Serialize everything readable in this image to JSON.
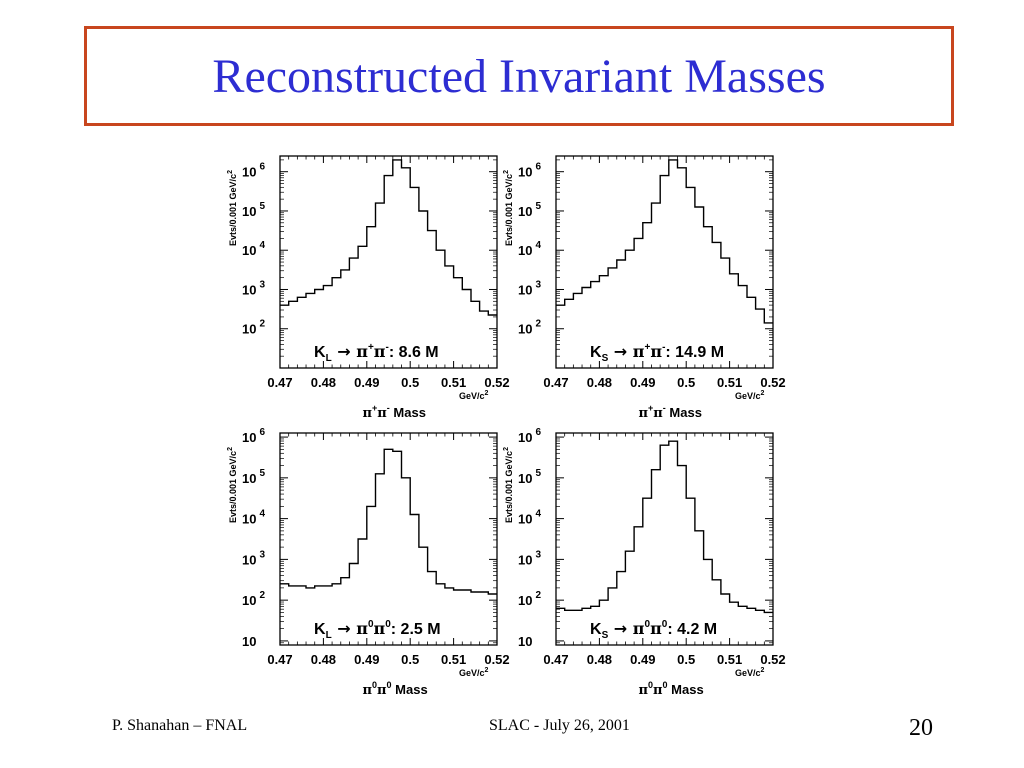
{
  "slide": {
    "title": "Reconstructed Invariant Masses",
    "footer_left": "P. Shanahan – FNAL",
    "footer_center": "SLAC  -  July 26, 2001",
    "page_number": "20"
  },
  "colors": {
    "title_text": "#2d2dd2",
    "title_border": "#c8461e",
    "histogram_line": "#000000"
  },
  "chart_data": [
    {
      "type": "histogram",
      "panel": "top-left",
      "legend": {
        "parent": "K",
        "parent_sub": "L",
        "d1": "π",
        "d1_sup": "+",
        "d2": "π",
        "d2_sup": "-",
        "count": ": 8.6 M"
      },
      "xlabel": {
        "s1": "π",
        "sup1": "+",
        "s2": "π",
        "sup2": "-",
        "rest": " Mass"
      },
      "ylabel": "Evts/0.001 GeV/c",
      "ylabel_sup": "2",
      "x_unit": "GeV/c",
      "x_unit_sup": "2",
      "xlim": [
        0.47,
        0.52
      ],
      "ylim_log10": [
        1.0,
        6.4
      ],
      "log_y": true,
      "x_ticks": [
        "0.47",
        "0.48",
        "0.49",
        "0.5",
        "0.51",
        "0.52"
      ],
      "y_ticks": [
        {
          "base": "10",
          "exp": "2"
        },
        {
          "base": "10",
          "exp": "3"
        },
        {
          "base": "10",
          "exp": "4"
        },
        {
          "base": "10",
          "exp": "5"
        },
        {
          "base": "10",
          "exp": "6"
        }
      ],
      "x_bin_edges": [
        0.47,
        0.472,
        0.474,
        0.476,
        0.478,
        0.48,
        0.482,
        0.484,
        0.486,
        0.488,
        0.49,
        0.492,
        0.494,
        0.496,
        0.498,
        0.5,
        0.502,
        0.504,
        0.506,
        0.508,
        0.51,
        0.512,
        0.514,
        0.516,
        0.518,
        0.52
      ],
      "log10_counts": [
        2.6,
        2.7,
        2.8,
        2.9,
        3.0,
        3.1,
        3.3,
        3.5,
        3.8,
        4.1,
        4.6,
        5.2,
        5.9,
        6.3,
        6.1,
        5.6,
        5.0,
        4.5,
        4.0,
        3.6,
        3.3,
        3.0,
        2.7,
        2.45,
        2.35
      ]
    },
    {
      "type": "histogram",
      "panel": "top-right",
      "legend": {
        "parent": "K",
        "parent_sub": "S",
        "d1": "π",
        "d1_sup": "+",
        "d2": "π",
        "d2_sup": "-",
        "count": ": 14.9 M"
      },
      "xlabel": {
        "s1": "π",
        "sup1": "+",
        "s2": "π",
        "sup2": "-",
        "rest": " Mass"
      },
      "ylabel": "Evts/0.001 GeV/c",
      "ylabel_sup": "2",
      "x_unit": "GeV/c",
      "x_unit_sup": "2",
      "xlim": [
        0.47,
        0.52
      ],
      "ylim_log10": [
        1.0,
        6.4
      ],
      "log_y": true,
      "x_ticks": [
        "0.47",
        "0.48",
        "0.49",
        "0.5",
        "0.51",
        "0.52"
      ],
      "y_ticks": [
        {
          "base": "10",
          "exp": "2"
        },
        {
          "base": "10",
          "exp": "3"
        },
        {
          "base": "10",
          "exp": "4"
        },
        {
          "base": "10",
          "exp": "5"
        },
        {
          "base": "10",
          "exp": "6"
        }
      ],
      "x_bin_edges": [
        0.47,
        0.472,
        0.474,
        0.476,
        0.478,
        0.48,
        0.482,
        0.484,
        0.486,
        0.488,
        0.49,
        0.492,
        0.494,
        0.496,
        0.498,
        0.5,
        0.502,
        0.504,
        0.506,
        0.508,
        0.51,
        0.512,
        0.514,
        0.516,
        0.518,
        0.52
      ],
      "log10_counts": [
        2.6,
        2.75,
        2.9,
        3.05,
        3.2,
        3.35,
        3.55,
        3.75,
        4.0,
        4.3,
        4.7,
        5.2,
        5.9,
        6.3,
        6.1,
        5.6,
        5.1,
        4.6,
        4.2,
        3.8,
        3.4,
        3.1,
        2.8,
        2.5,
        2.15
      ]
    },
    {
      "type": "histogram",
      "panel": "bottom-left",
      "legend": {
        "parent": "K",
        "parent_sub": "L",
        "d1": "π",
        "d1_sup": "0",
        "d2": "π",
        "d2_sup": "0",
        "count": ": 2.5 M"
      },
      "xlabel": {
        "s1": "π",
        "sup1": "0",
        "s2": "π",
        "sup2": "0",
        "rest": " Mass"
      },
      "ylabel": "Evts/0.001 GeV/c",
      "ylabel_sup": "2",
      "x_unit": "GeV/c",
      "x_unit_sup": "2",
      "xlim": [
        0.47,
        0.52
      ],
      "ylim_log10": [
        0.9,
        6.1
      ],
      "log_y": true,
      "x_ticks": [
        "0.47",
        "0.48",
        "0.49",
        "0.5",
        "0.51",
        "0.52"
      ],
      "y_ticks": [
        {
          "base": "10",
          "exp": ""
        },
        {
          "base": "10",
          "exp": "2"
        },
        {
          "base": "10",
          "exp": "3"
        },
        {
          "base": "10",
          "exp": "4"
        },
        {
          "base": "10",
          "exp": "5"
        },
        {
          "base": "10",
          "exp": "6"
        }
      ],
      "x_bin_edges": [
        0.47,
        0.472,
        0.474,
        0.476,
        0.478,
        0.48,
        0.482,
        0.484,
        0.486,
        0.488,
        0.49,
        0.492,
        0.494,
        0.496,
        0.498,
        0.5,
        0.502,
        0.504,
        0.506,
        0.508,
        0.51,
        0.512,
        0.514,
        0.516,
        0.518,
        0.52
      ],
      "log10_counts": [
        2.4,
        2.35,
        2.35,
        2.3,
        2.35,
        2.35,
        2.4,
        2.55,
        2.9,
        3.5,
        4.3,
        5.1,
        5.7,
        5.65,
        5.0,
        4.1,
        3.3,
        2.7,
        2.4,
        2.3,
        2.25,
        2.25,
        2.2,
        2.2,
        2.15
      ]
    },
    {
      "type": "histogram",
      "panel": "bottom-right",
      "legend": {
        "parent": "K",
        "parent_sub": "S",
        "d1": "π",
        "d1_sup": "0",
        "d2": "π",
        "d2_sup": "0",
        "count": ": 4.2 M"
      },
      "xlabel": {
        "s1": "π",
        "sup1": "0",
        "s2": "π",
        "sup2": "0",
        "rest": " Mass"
      },
      "ylabel": "Evts/0.001 GeV/c",
      "ylabel_sup": "2",
      "x_unit": "GeV/c",
      "x_unit_sup": "2",
      "xlim": [
        0.47,
        0.52
      ],
      "ylim_log10": [
        0.9,
        6.1
      ],
      "log_y": true,
      "x_ticks": [
        "0.47",
        "0.48",
        "0.49",
        "0.5",
        "0.51",
        "0.52"
      ],
      "y_ticks": [
        {
          "base": "10",
          "exp": ""
        },
        {
          "base": "10",
          "exp": "2"
        },
        {
          "base": "10",
          "exp": "3"
        },
        {
          "base": "10",
          "exp": "4"
        },
        {
          "base": "10",
          "exp": "5"
        },
        {
          "base": "10",
          "exp": "6"
        }
      ],
      "x_bin_edges": [
        0.47,
        0.472,
        0.474,
        0.476,
        0.478,
        0.48,
        0.482,
        0.484,
        0.486,
        0.488,
        0.49,
        0.492,
        0.494,
        0.496,
        0.498,
        0.5,
        0.502,
        0.504,
        0.506,
        0.508,
        0.51,
        0.512,
        0.514,
        0.516,
        0.518,
        0.52
      ],
      "log10_counts": [
        1.8,
        1.75,
        1.75,
        1.8,
        1.85,
        2.0,
        2.3,
        2.7,
        3.2,
        3.8,
        4.5,
        5.2,
        5.8,
        5.9,
        5.3,
        4.5,
        3.7,
        3.0,
        2.5,
        2.15,
        1.95,
        1.85,
        1.8,
        1.75,
        1.7
      ]
    }
  ]
}
